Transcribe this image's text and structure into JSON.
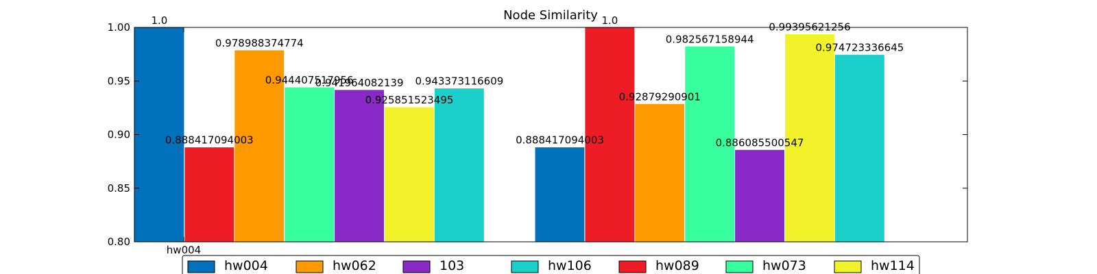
{
  "chart_data": {
    "type": "bar",
    "title": "Node Similarity",
    "xlabel": "",
    "ylabel": "",
    "ylim": [
      0.8,
      1.0
    ],
    "yticks": [
      "0.80",
      "0.85",
      "0.90",
      "0.95",
      "1.00"
    ],
    "ytick_values": [
      0.8,
      0.85,
      0.9,
      0.95,
      1.0
    ],
    "categories": [
      "hw004",
      ""
    ],
    "grid": false,
    "legend_position": "bottom",
    "series": [
      {
        "name": "hw004",
        "color": "#0072bd",
        "values": [
          1.0,
          0.888417094003
        ],
        "labels": [
          "1.0",
          "0.888417094003"
        ]
      },
      {
        "name": "hw089",
        "color": "#ee1d25",
        "values": [
          0.888417094003,
          1.0
        ],
        "labels": [
          "0.888417094003",
          "1.0"
        ]
      },
      {
        "name": "hw062",
        "color": "#ff9900",
        "values": [
          0.978988374774,
          0.92879290901
        ],
        "labels": [
          "0.978988374774",
          "0.92879290901"
        ]
      },
      {
        "name": "hw073",
        "color": "#38ff9e",
        "values": [
          0.944407517956,
          0.982567158944
        ],
        "labels": [
          "0.944407517956",
          "0.982567158944"
        ]
      },
      {
        "name": "103",
        "color": "#8829c8",
        "values": [
          0.941964082139,
          0.886085500547
        ],
        "labels": [
          "0.941964082139",
          "0.886085500547"
        ]
      },
      {
        "name": "hw114",
        "color": "#f2f22a",
        "values": [
          0.925851523495,
          0.99395621256
        ],
        "labels": [
          "0.925851523495",
          "0.99395621256"
        ]
      },
      {
        "name": "hw106",
        "color": "#1bcfcb",
        "values": [
          0.943373116609,
          0.974723336645
        ],
        "labels": [
          "0.943373116609",
          "0.974723336645"
        ]
      }
    ],
    "legend_order": [
      "hw004",
      "hw062",
      "103",
      "hw106",
      "hw089",
      "hw073",
      "hw114"
    ]
  }
}
